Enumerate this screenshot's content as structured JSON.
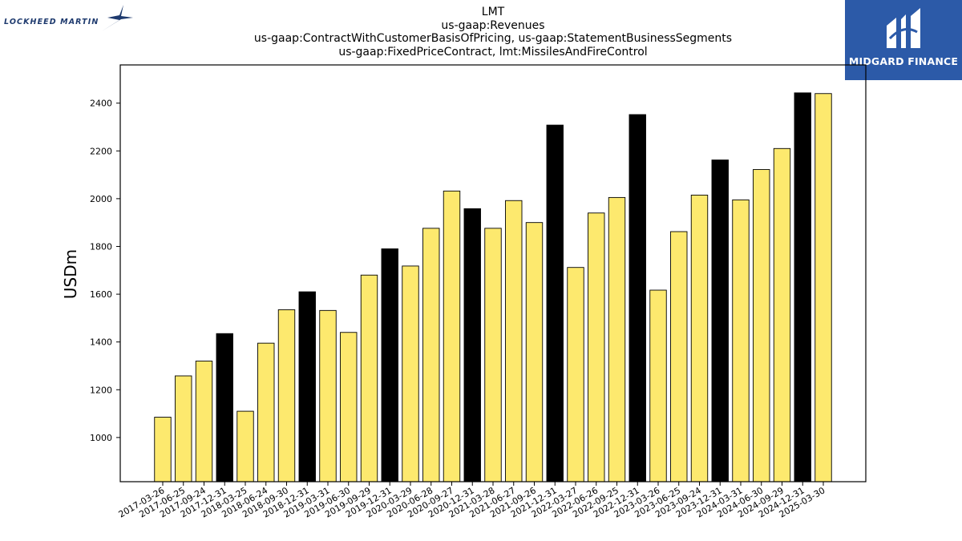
{
  "header": {
    "title_lines": [
      "LMT",
      "us-gaap:Revenues",
      "us-gaap:ContractWithCustomerBasisOfPricing, us-gaap:StatementBusinessSegments",
      "us-gaap:FixedPriceContract, lmt:MissilesAndFireControl"
    ]
  },
  "logos": {
    "left_text": "LOCKHEED MARTIN",
    "right_text": "MIDGARD FINANCE"
  },
  "colors": {
    "quarter_bar": "#fde96e",
    "year_end_bar": "#000000",
    "brand_blue": "#2c5aa8",
    "lockheed_blue": "#1e3a6e"
  },
  "chart_data": {
    "type": "bar",
    "ylabel": "USDm",
    "xlabel": "",
    "ylim": [
      815,
      2560
    ],
    "yticks": [
      1000,
      1200,
      1400,
      1600,
      1800,
      2000,
      2200,
      2400
    ],
    "grid": false,
    "categories": [
      "2017-03-26",
      "2017-06-25",
      "2017-09-24",
      "2017-12-31",
      "2018-03-25",
      "2018-06-24",
      "2018-09-30",
      "2018-12-31",
      "2019-03-31",
      "2019-06-30",
      "2019-09-29",
      "2019-12-31",
      "2020-03-29",
      "2020-06-28",
      "2020-09-27",
      "2020-12-31",
      "2021-03-28",
      "2021-06-27",
      "2021-09-26",
      "2021-12-31",
      "2022-03-27",
      "2022-06-26",
      "2022-09-25",
      "2022-12-31",
      "2023-03-26",
      "2023-06-25",
      "2023-09-24",
      "2023-12-31",
      "2024-03-31",
      "2024-06-30",
      "2024-09-29",
      "2024-12-31",
      "2025-03-30"
    ],
    "values": [
      1085,
      1258,
      1320,
      1435,
      1110,
      1395,
      1535,
      1610,
      1532,
      1440,
      1680,
      1790,
      1718,
      1876,
      2032,
      1958,
      1876,
      1992,
      1900,
      2308,
      1712,
      1940,
      2005,
      2352,
      1617,
      1862,
      2015,
      2162,
      1995,
      2122,
      2210,
      2443,
      2440
    ],
    "year_end": [
      false,
      false,
      false,
      true,
      false,
      false,
      false,
      true,
      false,
      false,
      false,
      true,
      false,
      false,
      false,
      true,
      false,
      false,
      false,
      true,
      false,
      false,
      false,
      true,
      false,
      false,
      false,
      true,
      false,
      false,
      false,
      true,
      false
    ]
  }
}
